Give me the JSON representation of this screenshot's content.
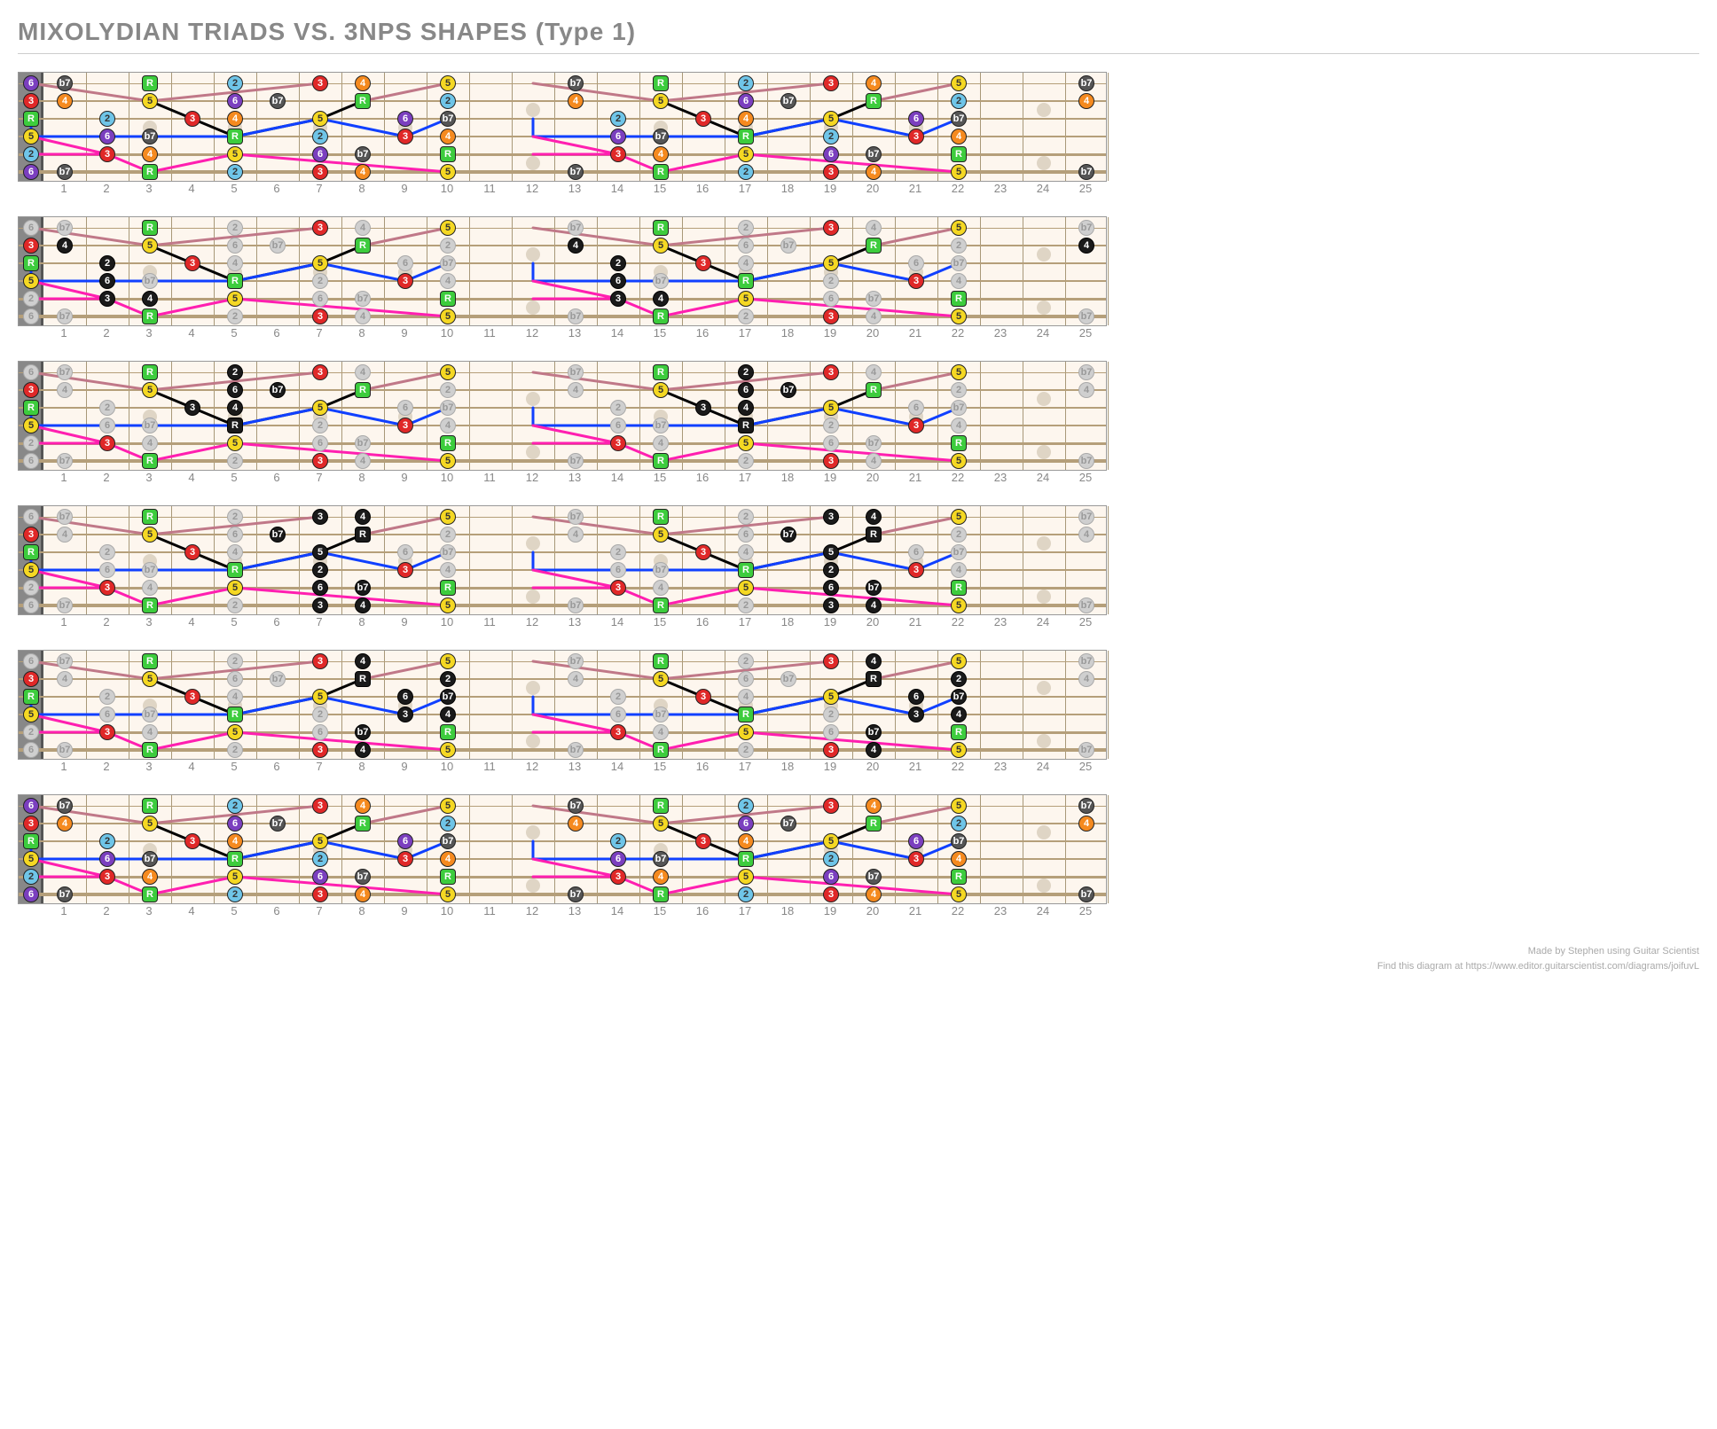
{
  "title": "MIXOLYDIAN TRIADS VS. 3NPS SHAPES (Type 1)",
  "footer": {
    "line1": "Made by Stephen using Guitar Scientist",
    "line2": "Find this diagram at https://www.editor.guitarscientist.com/diagrams/joifuvL"
  },
  "layout": {
    "numFrets": 25,
    "numStrings": 6,
    "nutWidth": 28,
    "fretWidth": 48,
    "stringSpacing": 20,
    "topPad": 12,
    "noteSize": 18,
    "markerSize": 16,
    "singleMarkers": [
      3,
      5,
      7,
      9,
      15,
      17,
      19,
      21
    ],
    "doubleMarkers": [
      12,
      24
    ],
    "stringWidths": [
      1,
      1.5,
      2,
      2.5,
      3,
      3.5
    ]
  },
  "colors": {
    "R": "#3dcc3d",
    "3": "#e02828",
    "5": "#f5d823",
    "6": "#7b3fbf",
    "b7": "#e02828",
    "2": "#6fc5e8",
    "4": "#f58a1f",
    "black": "#1a1a1a",
    "grey": "#cfcfcf",
    "greytext": "#999",
    "line_pink": "#ff1fb0",
    "line_blue": "#1040ff",
    "line_black": "#000",
    "line_rose": "#c07888"
  },
  "mixolydian": [
    {
      "s": 1,
      "f": 0,
      "d": "6"
    },
    {
      "s": 1,
      "f": 1,
      "d": "b7"
    },
    {
      "s": 1,
      "f": 3,
      "d": "R"
    },
    {
      "s": 1,
      "f": 5,
      "d": "2"
    },
    {
      "s": 1,
      "f": 7,
      "d": "3"
    },
    {
      "s": 1,
      "f": 8,
      "d": "4"
    },
    {
      "s": 1,
      "f": 10,
      "d": "5"
    },
    {
      "s": 2,
      "f": 0,
      "d": "3"
    },
    {
      "s": 2,
      "f": 1,
      "d": "4"
    },
    {
      "s": 2,
      "f": 3,
      "d": "5"
    },
    {
      "s": 2,
      "f": 5,
      "d": "6"
    },
    {
      "s": 2,
      "f": 6,
      "d": "b7"
    },
    {
      "s": 2,
      "f": 8,
      "d": "R"
    },
    {
      "s": 2,
      "f": 10,
      "d": "2"
    },
    {
      "s": 3,
      "f": 0,
      "d": "R"
    },
    {
      "s": 3,
      "f": 2,
      "d": "2"
    },
    {
      "s": 3,
      "f": 4,
      "d": "3"
    },
    {
      "s": 3,
      "f": 5,
      "d": "4"
    },
    {
      "s": 3,
      "f": 7,
      "d": "5"
    },
    {
      "s": 3,
      "f": 9,
      "d": "6"
    },
    {
      "s": 3,
      "f": 10,
      "d": "b7"
    },
    {
      "s": 4,
      "f": 0,
      "d": "5"
    },
    {
      "s": 4,
      "f": 2,
      "d": "6"
    },
    {
      "s": 4,
      "f": 3,
      "d": "b7"
    },
    {
      "s": 4,
      "f": 5,
      "d": "R"
    },
    {
      "s": 4,
      "f": 7,
      "d": "2"
    },
    {
      "s": 4,
      "f": 9,
      "d": "3"
    },
    {
      "s": 4,
      "f": 10,
      "d": "4"
    },
    {
      "s": 5,
      "f": 0,
      "d": "2"
    },
    {
      "s": 5,
      "f": 2,
      "d": "3"
    },
    {
      "s": 5,
      "f": 3,
      "d": "4"
    },
    {
      "s": 5,
      "f": 5,
      "d": "5"
    },
    {
      "s": 5,
      "f": 7,
      "d": "6"
    },
    {
      "s": 5,
      "f": 8,
      "d": "b7"
    },
    {
      "s": 5,
      "f": 10,
      "d": "R"
    },
    {
      "s": 6,
      "f": 0,
      "d": "6"
    },
    {
      "s": 6,
      "f": 1,
      "d": "b7"
    },
    {
      "s": 6,
      "f": 3,
      "d": "R"
    },
    {
      "s": 6,
      "f": 5,
      "d": "2"
    },
    {
      "s": 6,
      "f": 7,
      "d": "3"
    },
    {
      "s": 6,
      "f": 8,
      "d": "4"
    },
    {
      "s": 6,
      "f": 10,
      "d": "5"
    }
  ],
  "strongDegrees": {
    "0": [
      "R",
      "3",
      "5"
    ],
    "1": [
      "R",
      "3",
      "5",
      "2",
      "4"
    ],
    "2": [
      "R",
      "3",
      "5",
      "2",
      "4",
      "6",
      "b7"
    ],
    "3": [
      "R",
      "3",
      "5",
      "2",
      "4",
      "6",
      "b7"
    ],
    "4": [
      "R",
      "3",
      "5",
      "2",
      "4",
      "6",
      "b7"
    ],
    "5": [
      "R",
      "3",
      "5"
    ]
  },
  "diagramStyles": [
    "colored",
    "greyed",
    "greyed",
    "greyed",
    "greyed",
    "colored"
  ],
  "blackSets": [
    [],
    [
      {
        "s": 3,
        "f": 2
      },
      {
        "s": 4,
        "f": 2
      },
      {
        "s": 5,
        "f": 2
      },
      {
        "s": 2,
        "f": 1
      },
      {
        "s": 5,
        "f": 3
      }
    ],
    [
      {
        "s": 1,
        "f": 5
      },
      {
        "s": 2,
        "f": 5
      },
      {
        "s": 3,
        "f": 5
      },
      {
        "s": 4,
        "f": 5
      },
      {
        "s": 3,
        "f": 4
      },
      {
        "s": 2,
        "f": 6
      }
    ],
    [
      {
        "s": 1,
        "f": 7
      },
      {
        "s": 1,
        "f": 8
      },
      {
        "s": 2,
        "f": 8
      },
      {
        "s": 3,
        "f": 7
      },
      {
        "s": 4,
        "f": 7
      },
      {
        "s": 5,
        "f": 7
      },
      {
        "s": 5,
        "f": 8
      },
      {
        "s": 6,
        "f": 7
      },
      {
        "s": 6,
        "f": 8
      },
      {
        "s": 2,
        "f": 6
      }
    ],
    [
      {
        "s": 1,
        "f": 8
      },
      {
        "s": 2,
        "f": 8
      },
      {
        "s": 2,
        "f": 10
      },
      {
        "s": 3,
        "f": 9
      },
      {
        "s": 3,
        "f": 10
      },
      {
        "s": 4,
        "f": 9
      },
      {
        "s": 4,
        "f": 10
      },
      {
        "s": 5,
        "f": 8
      },
      {
        "s": 6,
        "f": 8
      }
    ],
    []
  ],
  "triadPathModule": [
    {
      "s": 1,
      "f": 0
    },
    {
      "s": 2,
      "f": 0
    },
    {
      "s": 2,
      "f": 3
    },
    {
      "s": 3,
      "f": 0
    },
    {
      "s": 4,
      "f": 0
    },
    {
      "s": 5,
      "f": 0
    },
    {
      "s": 6,
      "f": 0
    },
    {
      "s": 6,
      "f": 3
    },
    {
      "s": 5,
      "f": 5
    },
    {
      "s": 4,
      "f": 5
    },
    {
      "s": 3,
      "f": 7
    },
    {
      "s": 2,
      "f": 8
    },
    {
      "s": 1,
      "f": 7
    },
    {
      "s": 1,
      "f": 10
    },
    {
      "s": 2,
      "f": 10
    },
    {
      "s": 3,
      "f": 9
    },
    {
      "s": 3,
      "f": 10
    },
    {
      "s": 4,
      "f": 9
    },
    {
      "s": 5,
      "f": 10
    },
    {
      "s": 6,
      "f": 10
    }
  ],
  "connections": [
    {
      "color": "line_rose",
      "pts": [
        {
          "s": 1,
          "f": 0
        },
        {
          "s": 2,
          "f": 3
        },
        {
          "s": 1,
          "f": 7
        }
      ]
    },
    {
      "color": "line_rose",
      "pts": [
        {
          "s": 1,
          "f": 10
        },
        {
          "s": 2,
          "f": 8
        }
      ]
    },
    {
      "color": "line_black",
      "pts": [
        {
          "s": 2,
          "f": 3
        },
        {
          "s": 3,
          "f": 4
        },
        {
          "s": 4,
          "f": 5
        },
        {
          "s": 3,
          "f": 7
        },
        {
          "s": 2,
          "f": 8
        }
      ]
    },
    {
      "color": "line_blue",
      "pts": [
        {
          "s": 3,
          "f": 0
        },
        {
          "s": 4,
          "f": 0
        },
        {
          "s": 4,
          "f": 5
        },
        {
          "s": 3,
          "f": 7
        },
        {
          "s": 4,
          "f": 9
        }
      ]
    },
    {
      "color": "line_blue",
      "pts": [
        {
          "s": 3,
          "f": 10
        },
        {
          "s": 4,
          "f": 9
        }
      ]
    },
    {
      "color": "line_pink",
      "pts": [
        {
          "s": 5,
          "f": 0
        },
        {
          "s": 5,
          "f": 2
        },
        {
          "s": 6,
          "f": 3
        },
        {
          "s": 5,
          "f": 5
        },
        {
          "s": 6,
          "f": 10
        }
      ]
    },
    {
      "color": "line_pink",
      "pts": [
        {
          "s": 4,
          "f": 0
        },
        {
          "s": 5,
          "f": 2
        }
      ]
    }
  ]
}
